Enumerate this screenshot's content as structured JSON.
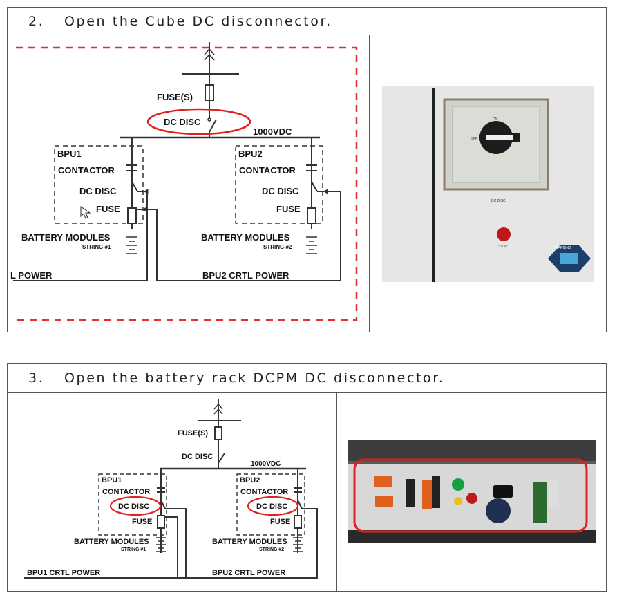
{
  "steps": [
    {
      "number": "2.",
      "text": "Open the Cube DC disconnector."
    },
    {
      "number": "3.",
      "text": "Open the battery rack DCPM DC disconnector."
    }
  ],
  "diagram1": {
    "fuse": "FUSE(S)",
    "dc_disc": "DC DISC",
    "voltage": "1000VDC",
    "bpu1": "BPU1",
    "bpu2": "BPU2",
    "contactor": "CONTACTOR",
    "fuse_small": "FUSE",
    "battery_modules": "BATTERY MODULES",
    "string1": "STRING #1",
    "string2": "STRING #2",
    "bpu1_ctrl": "L POWER",
    "bpu2_ctrl": "BPU2 CRTL POWER"
  },
  "diagram2": {
    "fuse": "FUSE(S)",
    "dc_disc": "DC DISC",
    "voltage": "1000VDC",
    "bpu1": "BPU1",
    "bpu2": "BPU2",
    "contactor": "CONTACTOR",
    "fuse_small": "FUSE",
    "battery_modules": "BATTERY MODULES",
    "string1": "STRING #1",
    "string2": "STRING #2",
    "bpu1_ctrl": "BPU1 CRTL POWER",
    "bpu2_ctrl": "BPU2 CRTL POWER"
  },
  "photo1": {
    "on": "ON",
    "off": "OFF",
    "dc_disc": "DC DISC.",
    "stop": "STOP",
    "warning": "WARNING"
  },
  "colors": {
    "highlight": "#e02020",
    "panel": "#e8e8e6",
    "handle": "#1c1c1c"
  }
}
